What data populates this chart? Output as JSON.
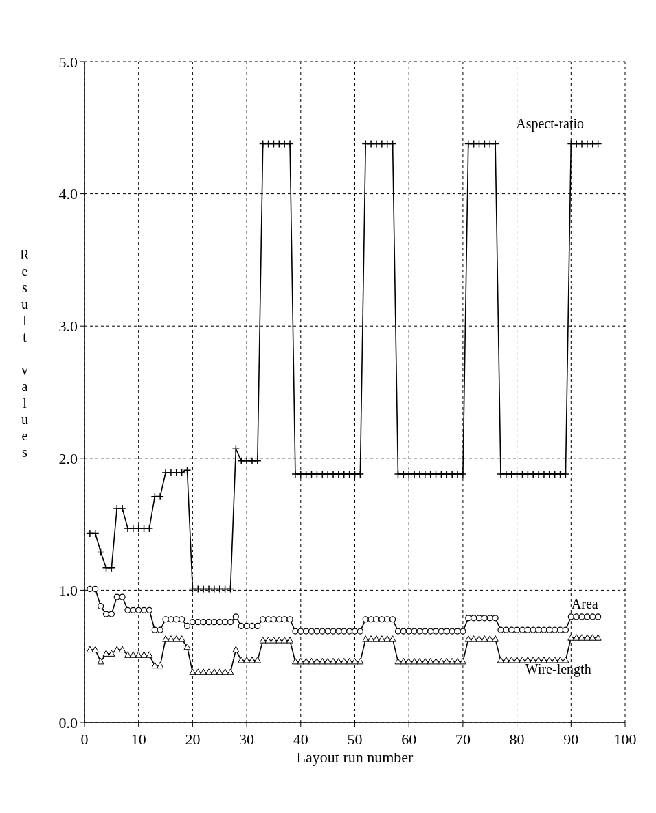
{
  "chart_data": {
    "type": "line",
    "xlabel": "Layout run number",
    "ylabel": "Result values",
    "xlim": [
      0,
      100
    ],
    "xticks": [
      0,
      10,
      20,
      30,
      40,
      50,
      60,
      70,
      80,
      90,
      100
    ],
    "ylim": [
      0,
      5
    ],
    "yticks": [
      {
        "value": 0,
        "label": "0.0"
      },
      {
        "value": 1,
        "label": "1.0"
      },
      {
        "value": 2,
        "label": "2.0"
      },
      {
        "value": 3,
        "label": "3.0"
      },
      {
        "value": 4,
        "label": "4.0"
      },
      {
        "value": 5,
        "label": "5.0"
      }
    ],
    "grid": true,
    "line_style": "solid",
    "x": [
      1,
      2,
      3,
      4,
      5,
      6,
      7,
      8,
      9,
      10,
      11,
      12,
      13,
      14,
      15,
      16,
      17,
      18,
      19,
      20,
      21,
      22,
      23,
      24,
      25,
      26,
      27,
      28,
      29,
      30,
      31,
      32,
      33,
      34,
      35,
      36,
      37,
      38,
      39,
      40,
      41,
      42,
      43,
      44,
      45,
      46,
      47,
      48,
      49,
      50,
      51,
      52,
      53,
      54,
      55,
      56,
      57,
      58,
      59,
      60,
      61,
      62,
      63,
      64,
      65,
      66,
      67,
      68,
      69,
      70,
      71,
      72,
      73,
      74,
      75,
      76,
      77,
      78,
      79,
      80,
      81,
      82,
      83,
      84,
      85,
      86,
      87,
      88,
      89,
      90,
      91,
      92,
      93,
      94,
      95
    ],
    "series": [
      {
        "name": "Aspect-ratio",
        "color": "#000000",
        "marker": "cross",
        "values": [
          1.43,
          1.43,
          1.29,
          1.17,
          1.17,
          1.62,
          1.62,
          1.47,
          1.47,
          1.47,
          1.47,
          1.47,
          1.71,
          1.71,
          1.89,
          1.89,
          1.89,
          1.89,
          1.91,
          1.01,
          1.01,
          1.01,
          1.01,
          1.01,
          1.01,
          1.01,
          1.01,
          2.07,
          1.98,
          1.98,
          1.98,
          1.98,
          4.38,
          4.38,
          4.38,
          4.38,
          4.38,
          4.38,
          1.88,
          1.88,
          1.88,
          1.88,
          1.88,
          1.88,
          1.88,
          1.88,
          1.88,
          1.88,
          1.88,
          1.88,
          1.88,
          4.38,
          4.38,
          4.38,
          4.38,
          4.38,
          4.38,
          1.88,
          1.88,
          1.88,
          1.88,
          1.88,
          1.88,
          1.88,
          1.88,
          1.88,
          1.88,
          1.88,
          1.88,
          1.88,
          4.38,
          4.38,
          4.38,
          4.38,
          4.38,
          4.38,
          1.88,
          1.88,
          1.88,
          1.88,
          1.88,
          1.88,
          1.88,
          1.88,
          1.88,
          1.88,
          1.88,
          1.88,
          1.88,
          4.38,
          4.38,
          4.38,
          4.38,
          4.38,
          4.38
        ]
      },
      {
        "name": "Area",
        "color": "#000000",
        "marker": "circle",
        "values": [
          1.01,
          1.01,
          0.88,
          0.82,
          0.82,
          0.95,
          0.95,
          0.85,
          0.85,
          0.85,
          0.85,
          0.85,
          0.7,
          0.7,
          0.78,
          0.78,
          0.78,
          0.78,
          0.73,
          0.76,
          0.76,
          0.76,
          0.76,
          0.76,
          0.76,
          0.76,
          0.76,
          0.8,
          0.73,
          0.73,
          0.73,
          0.73,
          0.78,
          0.78,
          0.78,
          0.78,
          0.78,
          0.78,
          0.69,
          0.69,
          0.69,
          0.69,
          0.69,
          0.69,
          0.69,
          0.69,
          0.69,
          0.69,
          0.69,
          0.69,
          0.69,
          0.78,
          0.78,
          0.78,
          0.78,
          0.78,
          0.78,
          0.69,
          0.69,
          0.69,
          0.69,
          0.69,
          0.69,
          0.69,
          0.69,
          0.69,
          0.69,
          0.69,
          0.69,
          0.69,
          0.79,
          0.79,
          0.79,
          0.79,
          0.79,
          0.79,
          0.7,
          0.7,
          0.7,
          0.7,
          0.7,
          0.7,
          0.7,
          0.7,
          0.7,
          0.7,
          0.7,
          0.7,
          0.7,
          0.8,
          0.8,
          0.8,
          0.8,
          0.8,
          0.8
        ]
      },
      {
        "name": "Wire-length",
        "color": "#000000",
        "marker": "triangle",
        "values": [
          0.55,
          0.55,
          0.46,
          0.52,
          0.52,
          0.55,
          0.55,
          0.51,
          0.51,
          0.51,
          0.51,
          0.51,
          0.43,
          0.43,
          0.63,
          0.63,
          0.63,
          0.63,
          0.57,
          0.38,
          0.38,
          0.38,
          0.38,
          0.38,
          0.38,
          0.38,
          0.38,
          0.55,
          0.47,
          0.47,
          0.47,
          0.47,
          0.62,
          0.62,
          0.62,
          0.62,
          0.62,
          0.62,
          0.46,
          0.46,
          0.46,
          0.46,
          0.46,
          0.46,
          0.46,
          0.46,
          0.46,
          0.46,
          0.46,
          0.46,
          0.46,
          0.63,
          0.63,
          0.63,
          0.63,
          0.63,
          0.63,
          0.46,
          0.46,
          0.46,
          0.46,
          0.46,
          0.46,
          0.46,
          0.46,
          0.46,
          0.46,
          0.46,
          0.46,
          0.46,
          0.63,
          0.63,
          0.63,
          0.63,
          0.63,
          0.63,
          0.47,
          0.47,
          0.47,
          0.47,
          0.47,
          0.47,
          0.47,
          0.47,
          0.47,
          0.47,
          0.47,
          0.47,
          0.47,
          0.64,
          0.64,
          0.64,
          0.64,
          0.64,
          0.64
        ]
      }
    ]
  }
}
